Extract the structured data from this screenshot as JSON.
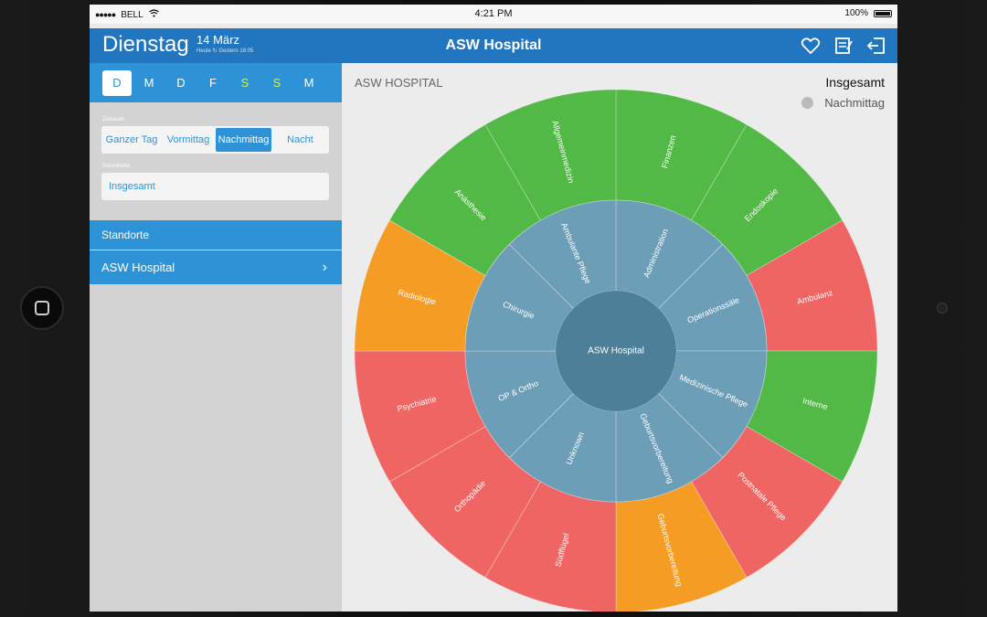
{
  "status_bar": {
    "carrier": "BELL",
    "time": "4:21 PM",
    "battery": "100%"
  },
  "header": {
    "day": "Dienstag",
    "date": "14 März",
    "subtitle": "Heute  ↻  Gestern 16:05",
    "title": "ASW Hospital",
    "icons": [
      "heart-icon",
      "notes-icon",
      "logout-icon"
    ]
  },
  "sidebar": {
    "days": [
      "D",
      "M",
      "D",
      "F",
      "S",
      "S",
      "M"
    ],
    "selected_day_index": 0,
    "zeitraum_label": "Zeitraum",
    "zeitraum_options": [
      "Ganzer Tag",
      "Vormittag",
      "Nachmittag",
      "Nacht"
    ],
    "zeitraum_selected": "Nachmittag",
    "dienstreihe_label": "Dienstreihe",
    "dienstreihe_value": "Insgesamt",
    "section_title": "Standorte",
    "location": "ASW Hospital"
  },
  "main": {
    "title": "ASW HOSPITAL",
    "filter_title": "Insgesamt",
    "filter_sub": "Nachmittag"
  },
  "colors": {
    "green": "#52b846",
    "red": "#ee6563",
    "orange": "#f59c24",
    "inner_ring": "#6d9eb8",
    "center": "#4e7f99",
    "accent": "#2d93d6",
    "nav": "#2276c0"
  },
  "sunburst": {
    "center_label": "ASW Hospital",
    "inner": [
      {
        "label": "Administration",
        "color": "inner_ring"
      },
      {
        "label": "Operationssäle",
        "color": "inner_ring"
      },
      {
        "label": "Medizinische Pflege",
        "color": "inner_ring"
      },
      {
        "label": "Geburtsvorbereitung",
        "color": "inner_ring"
      },
      {
        "label": "Unknown",
        "color": "inner_ring"
      },
      {
        "label": "OP & Ortho",
        "color": "inner_ring"
      },
      {
        "label": "Chirurgie",
        "color": "inner_ring"
      },
      {
        "label": "Ambulante Pflege",
        "color": "inner_ring"
      }
    ],
    "outer": [
      {
        "label": "Finanzen",
        "color": "green"
      },
      {
        "label": "Endoskopie",
        "color": "green"
      },
      {
        "label": "Ambulanz",
        "color": "red"
      },
      {
        "label": "Interne",
        "color": "green"
      },
      {
        "label": "Postnatale Pflege",
        "color": "red"
      },
      {
        "label": "Geburtsvorbereitung",
        "color": "orange"
      },
      {
        "label": "Südflügel",
        "color": "red"
      },
      {
        "label": "Orthopädie",
        "color": "red"
      },
      {
        "label": "Psychiatrie",
        "color": "red"
      },
      {
        "label": "Radiologie",
        "color": "orange"
      },
      {
        "label": "Anästhesie",
        "color": "green"
      },
      {
        "label": "Allgemeinmedizin",
        "color": "green"
      }
    ]
  }
}
